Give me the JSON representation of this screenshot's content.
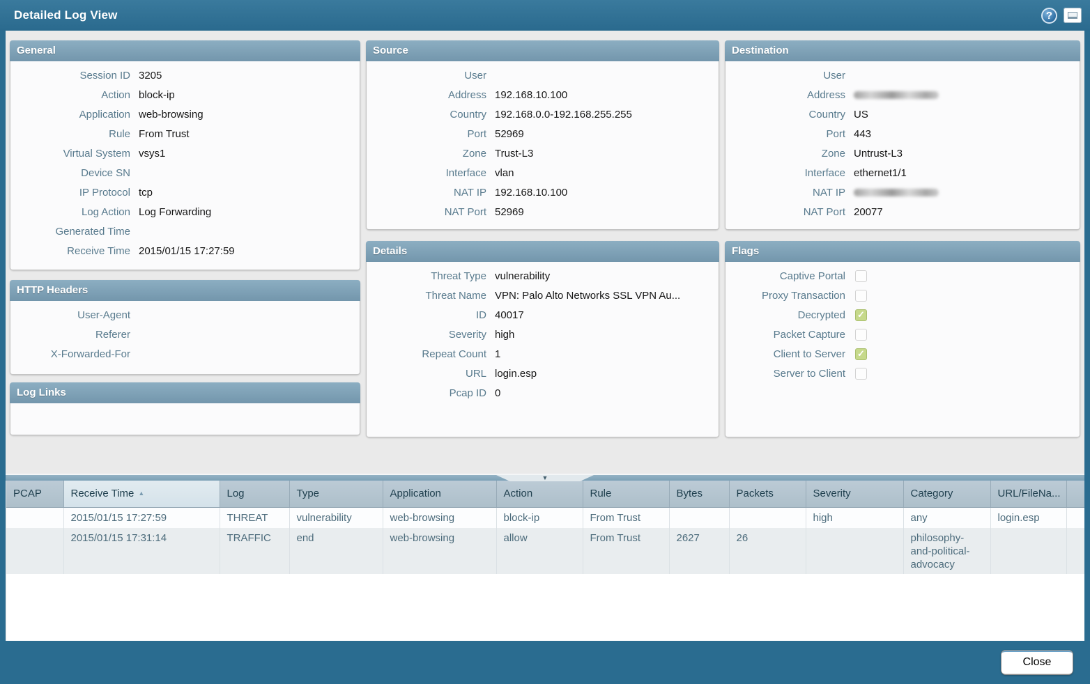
{
  "window": {
    "title": "Detailed Log View",
    "close_label": "Close",
    "help_glyph": "?",
    "collapse_glyph": "▼"
  },
  "panels": {
    "general": {
      "title": "General",
      "fields": [
        {
          "label": "Session ID",
          "value": "3205"
        },
        {
          "label": "Action",
          "value": "block-ip"
        },
        {
          "label": "Application",
          "value": "web-browsing"
        },
        {
          "label": "Rule",
          "value": "From Trust"
        },
        {
          "label": "Virtual System",
          "value": "vsys1"
        },
        {
          "label": "Device SN",
          "value": ""
        },
        {
          "label": "IP Protocol",
          "value": "tcp"
        },
        {
          "label": "Log Action",
          "value": "Log Forwarding"
        },
        {
          "label": "Generated Time",
          "value": ""
        },
        {
          "label": "Receive Time",
          "value": "2015/01/15 17:27:59"
        }
      ]
    },
    "http_headers": {
      "title": "HTTP Headers",
      "fields": [
        {
          "label": "User-Agent",
          "value": ""
        },
        {
          "label": "Referer",
          "value": ""
        },
        {
          "label": "X-Forwarded-For",
          "value": ""
        }
      ]
    },
    "log_links": {
      "title": "Log Links",
      "fields": []
    },
    "source": {
      "title": "Source",
      "fields": [
        {
          "label": "User",
          "value": ""
        },
        {
          "label": "Address",
          "value": "192.168.10.100"
        },
        {
          "label": "Country",
          "value": "192.168.0.0-192.168.255.255"
        },
        {
          "label": "Port",
          "value": "52969"
        },
        {
          "label": "Zone",
          "value": "Trust-L3"
        },
        {
          "label": "Interface",
          "value": "vlan"
        },
        {
          "label": "NAT IP",
          "value": "192.168.10.100"
        },
        {
          "label": "NAT Port",
          "value": "52969"
        }
      ]
    },
    "details": {
      "title": "Details",
      "fields": [
        {
          "label": "Threat Type",
          "value": "vulnerability"
        },
        {
          "label": "Threat Name",
          "value": "VPN: Palo Alto Networks SSL VPN Au..."
        },
        {
          "label": "ID",
          "value": "40017"
        },
        {
          "label": "Severity",
          "value": "high"
        },
        {
          "label": "Repeat Count",
          "value": "1"
        },
        {
          "label": "URL",
          "value": "login.esp"
        },
        {
          "label": "Pcap ID",
          "value": "0"
        }
      ]
    },
    "destination": {
      "title": "Destination",
      "fields": [
        {
          "label": "User",
          "value": ""
        },
        {
          "label": "Address",
          "value": "",
          "redacted": true
        },
        {
          "label": "Country",
          "value": "US"
        },
        {
          "label": "Port",
          "value": "443"
        },
        {
          "label": "Zone",
          "value": "Untrust-L3"
        },
        {
          "label": "Interface",
          "value": "ethernet1/1"
        },
        {
          "label": "NAT IP",
          "value": "",
          "redacted": true
        },
        {
          "label": "NAT Port",
          "value": "20077"
        }
      ]
    },
    "flags": {
      "title": "Flags",
      "items": [
        {
          "label": "Captive Portal",
          "checked": false
        },
        {
          "label": "Proxy Transaction",
          "checked": false
        },
        {
          "label": "Decrypted",
          "checked": true
        },
        {
          "label": "Packet Capture",
          "checked": false
        },
        {
          "label": "Client to Server",
          "checked": true
        },
        {
          "label": "Server to Client",
          "checked": false
        }
      ]
    }
  },
  "log_table": {
    "columns": [
      "PCAP",
      "Receive Time",
      "Log",
      "Type",
      "Application",
      "Action",
      "Rule",
      "Bytes",
      "Packets",
      "Severity",
      "Category",
      "URL/FileNa..."
    ],
    "sorted_column_index": 1,
    "sort_direction": "asc",
    "sort_arrow_glyph": "▲",
    "rows": [
      [
        "",
        "2015/01/15 17:27:59",
        "THREAT",
        "vulnerability",
        "web-browsing",
        "block-ip",
        "From Trust",
        "",
        "",
        "high",
        "any",
        "login.esp"
      ],
      [
        "",
        "2015/01/15 17:31:14",
        "TRAFFIC",
        "end",
        "web-browsing",
        "allow",
        "From Trust",
        "2627",
        "26",
        "",
        "philosophy-and-political-advocacy",
        ""
      ]
    ]
  },
  "colors": {
    "titlebar": "#2a6c90",
    "panel_header": "#7fa3ba",
    "panel_bg": "#fbfbfc",
    "region_bg": "#eaeaea",
    "table_header": "#b4c5d1",
    "table_header_sorted": "#dde8ee",
    "row_alt": "#e9edef",
    "label_text": "#587a8d",
    "checkbox_checked": "#c6d98b"
  }
}
